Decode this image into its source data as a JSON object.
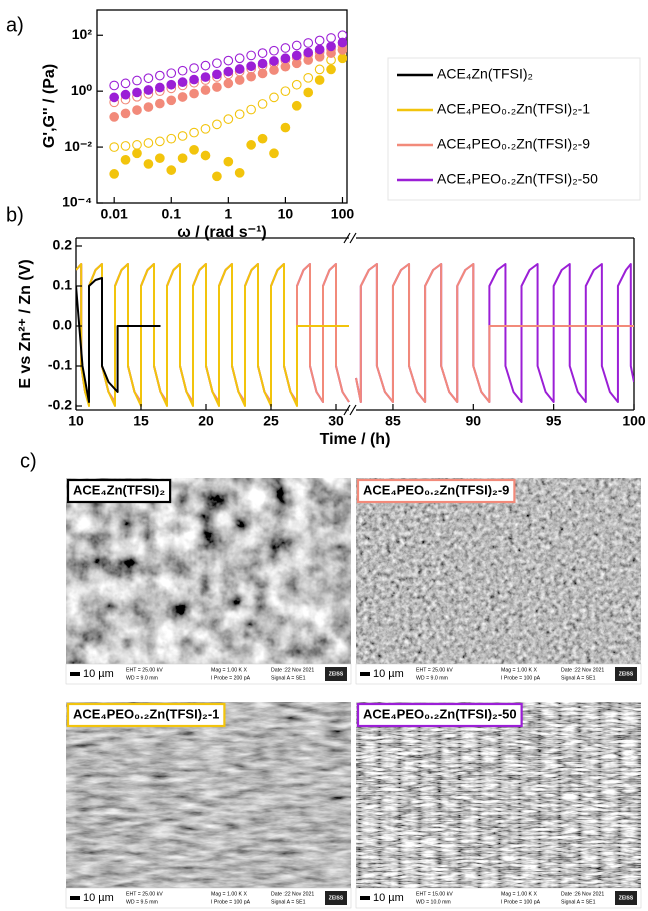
{
  "panel_labels": [
    "a)",
    "b)",
    "c)"
  ],
  "chart_data": [
    {
      "type": "scatter",
      "xlabel": "ω / (rad s⁻¹)",
      "ylabel": "G',G'' / (Pa)",
      "log_x": true,
      "log_y": true,
      "xlim": [
        0.005,
        120
      ],
      "ylim": [
        0.0001,
        800
      ],
      "xticks": [
        0.01,
        0.1,
        1,
        10,
        100
      ],
      "yticks": [
        {
          "value": 100,
          "label": "10²"
        },
        {
          "value": 1,
          "label": "10⁰"
        },
        {
          "value": 0.01,
          "label": "10⁻²"
        },
        {
          "value": 0.0001,
          "label": "10⁻⁴"
        }
      ],
      "x": [
        0.01,
        0.0158,
        0.0251,
        0.0398,
        0.0631,
        0.1,
        0.158,
        0.251,
        0.398,
        0.631,
        1,
        1.58,
        2.51,
        3.98,
        6.31,
        10,
        15.8,
        25.1,
        39.8,
        63.1,
        100
      ],
      "series": [
        {
          "color": "#f2c40c",
          "marker": "filled",
          "values": [
            0.0011,
            0.0035,
            0.006,
            0.0025,
            0.004,
            0.0015,
            0.004,
            0.008,
            0.005,
            0.0009,
            0.003,
            0.0012,
            0.012,
            0.02,
            0.006,
            0.05,
            0.3,
            0.9,
            2.5,
            6,
            15
          ]
        },
        {
          "color": "#f2c40c",
          "marker": "open",
          "values": [
            0.01,
            0.011,
            0.012,
            0.014,
            0.016,
            0.02,
            0.025,
            0.033,
            0.045,
            0.065,
            0.1,
            0.15,
            0.22,
            0.35,
            0.6,
            1,
            1.7,
            3,
            6,
            13,
            30
          ]
        },
        {
          "color": "#f28a7a",
          "marker": "filled",
          "values": [
            0.12,
            0.16,
            0.21,
            0.27,
            0.36,
            0.47,
            0.62,
            0.82,
            1.1,
            1.4,
            1.9,
            2.5,
            3.3,
            4.3,
            5.7,
            7.5,
            9.9,
            13,
            17,
            23,
            30
          ]
        },
        {
          "color": "#f28a7a",
          "marker": "open",
          "values": [
            0.4,
            0.5,
            0.63,
            0.8,
            1,
            1.26,
            1.6,
            2,
            2.5,
            3.2,
            4,
            5,
            6.3,
            8,
            10,
            12.6,
            16,
            20,
            25,
            32,
            40
          ]
        },
        {
          "color": "#9b1fd6",
          "marker": "filled",
          "values": [
            0.6,
            0.75,
            0.9,
            1.1,
            1.35,
            1.7,
            2.1,
            2.6,
            3.2,
            4,
            5,
            6.2,
            7.8,
            9.7,
            12,
            15,
            19,
            24,
            31,
            40,
            55
          ]
        },
        {
          "color": "#9b1fd6",
          "marker": "open",
          "values": [
            1.6,
            1.9,
            2.4,
            2.9,
            3.6,
            4.4,
            5.4,
            6.7,
            8.2,
            10,
            12.4,
            15,
            19,
            23,
            28,
            35,
            43,
            53,
            65,
            80,
            100
          ]
        }
      ]
    },
    {
      "type": "line",
      "xlabel": "Time / (h)",
      "ylabel": "E vs Zn²⁺ / Zn (V)",
      "legend": true,
      "xlim": [
        10,
        100
      ],
      "xbreak": [
        31,
        82.7
      ],
      "ylim": [
        -0.21,
        0.22
      ],
      "xticks": [
        10,
        15,
        20,
        25,
        30,
        85,
        90,
        95,
        100
      ],
      "yticks": [
        0.2,
        0.1,
        {
          "value": 0,
          "label": "0.0"
        },
        -0.1,
        -0.2
      ],
      "series": [
        {
          "name": "ACE₄Zn(TFSI)₂",
          "color": "#000000",
          "x": [
            10,
            10.5,
            11,
            11,
            11.5,
            12,
            12,
            12.5,
            13.2,
            13.2,
            16.5
          ],
          "values": [
            0.1,
            -0.1,
            -0.19,
            0.1,
            0.115,
            0.12,
            -0.1,
            -0.14,
            -0.165,
            0,
            0
          ]
        },
        {
          "name": "ACE₄PEO₀.₂Zn(TFSI)₂-1",
          "color": "#f2c40c",
          "x": [
            10,
            10.4,
            10.4,
            10.7,
            11,
            11,
            11.5,
            12,
            12,
            12.5,
            13,
            13,
            13.5,
            14,
            14,
            14.5,
            15,
            15,
            15.5,
            16,
            16,
            16.5,
            17,
            17,
            17.5,
            18,
            18,
            18.5,
            19,
            19,
            19.5,
            20,
            20,
            20.5,
            21,
            21,
            21.5,
            22,
            22,
            22.5,
            23,
            23,
            23.5,
            24,
            24,
            24.5,
            25,
            25,
            25.5,
            26,
            26,
            26.5,
            27,
            27,
            31
          ],
          "values": [
            0.14,
            0.155,
            -0.1,
            -0.165,
            -0.2,
            0.1,
            0.14,
            0.155,
            -0.1,
            -0.165,
            -0.2,
            0.1,
            0.14,
            0.155,
            -0.1,
            -0.165,
            -0.2,
            0.1,
            0.14,
            0.155,
            -0.1,
            -0.165,
            -0.2,
            0.1,
            0.14,
            0.155,
            -0.1,
            -0.165,
            -0.2,
            0.1,
            0.14,
            0.155,
            -0.1,
            -0.165,
            -0.2,
            0.1,
            0.14,
            0.155,
            -0.1,
            -0.165,
            -0.2,
            0.1,
            0.14,
            0.155,
            -0.1,
            -0.165,
            -0.2,
            0.1,
            0.14,
            0.155,
            -0.1,
            -0.165,
            -0.2,
            0,
            0
          ]
        },
        {
          "name": "ACE₄PEO₀.₂Zn(TFSI)₂-9",
          "color": "#f28a7a",
          "x": [
            10,
            10.4,
            10.4,
            10.7,
            11,
            11,
            11.5,
            12,
            12,
            12.5,
            13,
            13,
            13.5,
            14,
            14,
            14.5,
            15,
            15,
            15.5,
            16,
            16,
            16.5,
            17,
            17,
            17.5,
            18,
            18,
            18.5,
            19,
            19,
            19.5,
            20,
            20,
            20.5,
            21,
            21,
            21.5,
            22,
            22,
            22.5,
            23,
            23,
            23.5,
            24,
            24,
            24.5,
            25,
            25,
            25.5,
            26,
            26,
            26.5,
            27,
            27,
            27.5,
            28,
            28,
            28.5,
            29,
            29,
            29.5,
            30,
            30,
            30.5,
            31,
            null,
            82.7,
            83,
            83,
            83.5,
            84,
            84,
            84.5,
            85,
            85,
            85.5,
            86,
            86,
            86.5,
            87,
            87,
            87.5,
            88,
            88,
            88.5,
            89,
            89,
            89.5,
            90,
            90,
            90.5,
            91,
            91,
            100
          ],
          "values": [
            0.14,
            0.155,
            -0.1,
            -0.165,
            -0.19,
            0.1,
            0.14,
            0.155,
            -0.1,
            -0.165,
            -0.19,
            0.1,
            0.14,
            0.155,
            -0.1,
            -0.165,
            -0.19,
            0.1,
            0.14,
            0.155,
            -0.1,
            -0.165,
            -0.19,
            0.1,
            0.14,
            0.155,
            -0.1,
            -0.165,
            -0.19,
            0.1,
            0.14,
            0.155,
            -0.1,
            -0.165,
            -0.19,
            0.1,
            0.14,
            0.155,
            -0.1,
            -0.165,
            -0.19,
            0.1,
            0.14,
            0.155,
            -0.1,
            -0.165,
            -0.19,
            0.1,
            0.14,
            0.155,
            -0.1,
            -0.165,
            -0.19,
            0.1,
            0.14,
            0.155,
            -0.1,
            -0.165,
            -0.19,
            0.1,
            0.14,
            0.155,
            -0.1,
            -0.165,
            -0.19,
            null,
            -0.13,
            -0.19,
            0.1,
            0.14,
            0.155,
            -0.1,
            -0.165,
            -0.19,
            0.1,
            0.14,
            0.155,
            -0.1,
            -0.165,
            -0.19,
            0.1,
            0.14,
            0.155,
            -0.1,
            -0.165,
            -0.19,
            0.1,
            0.14,
            0.155,
            -0.1,
            -0.165,
            -0.19,
            0,
            0
          ]
        },
        {
          "name": "ACE₄PEO₀.₂Zn(TFSI)₂-50",
          "color": "#9b1fd6",
          "x": [
            10,
            10.4,
            10.4,
            10.7,
            11,
            11,
            11.5,
            12,
            12,
            12.5,
            13,
            13,
            13.5,
            14,
            14,
            14.5,
            15,
            15,
            15.5,
            16,
            16,
            16.5,
            17,
            17,
            17.5,
            18,
            18,
            18.5,
            19,
            19,
            19.5,
            20,
            20,
            20.5,
            21,
            21,
            21.5,
            22,
            22,
            22.5,
            23,
            23,
            23.5,
            24,
            24,
            24.5,
            25,
            25,
            25.5,
            26,
            26,
            26.5,
            27,
            27,
            27.5,
            28,
            28,
            28.5,
            29,
            29,
            29.5,
            30,
            30,
            30.5,
            31,
            null,
            82.7,
            83,
            83,
            83.5,
            84,
            84,
            84.5,
            85,
            85,
            85.5,
            86,
            86,
            86.5,
            87,
            87,
            87.5,
            88,
            88,
            88.5,
            89,
            89,
            89.5,
            90,
            90,
            90.5,
            91,
            91,
            91.5,
            92,
            92,
            92.5,
            93,
            93,
            93.5,
            94,
            94,
            94.5,
            95,
            95,
            95.5,
            96,
            96,
            96.5,
            97,
            97,
            97.5,
            98,
            98,
            98.5,
            99,
            99,
            99.5,
            99.8,
            99.8,
            100
          ],
          "values": [
            0.14,
            0.155,
            -0.1,
            -0.165,
            -0.19,
            0.1,
            0.14,
            0.155,
            -0.1,
            -0.165,
            -0.19,
            0.1,
            0.14,
            0.155,
            -0.1,
            -0.165,
            -0.19,
            0.1,
            0.14,
            0.155,
            -0.1,
            -0.165,
            -0.19,
            0.1,
            0.14,
            0.155,
            -0.1,
            -0.165,
            -0.19,
            0.1,
            0.14,
            0.155,
            -0.1,
            -0.165,
            -0.19,
            0.1,
            0.14,
            0.155,
            -0.1,
            -0.165,
            -0.19,
            0.1,
            0.14,
            0.155,
            -0.1,
            -0.165,
            -0.19,
            0.1,
            0.14,
            0.155,
            -0.1,
            -0.165,
            -0.19,
            0.1,
            0.14,
            0.155,
            -0.1,
            -0.165,
            -0.19,
            0.1,
            0.14,
            0.155,
            -0.1,
            -0.165,
            -0.19,
            null,
            -0.13,
            -0.19,
            0.1,
            0.14,
            0.155,
            -0.1,
            -0.165,
            -0.19,
            0.1,
            0.14,
            0.155,
            -0.1,
            -0.165,
            -0.19,
            0.1,
            0.14,
            0.155,
            -0.1,
            -0.165,
            -0.19,
            0.1,
            0.14,
            0.155,
            -0.1,
            -0.165,
            -0.19,
            0.1,
            0.14,
            0.155,
            -0.1,
            -0.165,
            -0.19,
            0.1,
            0.14,
            0.155,
            -0.1,
            -0.165,
            -0.19,
            0.1,
            0.14,
            0.155,
            -0.1,
            -0.165,
            -0.19,
            0.1,
            0.14,
            0.155,
            -0.1,
            -0.165,
            -0.19,
            0.1,
            0.14,
            0.155,
            -0.1,
            -0.14
          ]
        }
      ]
    }
  ],
  "panel_c": {
    "images": [
      {
        "title": "ACE₄Zn(TFSI)₂",
        "border_color": "#000000",
        "scale_bar": "10 µm",
        "logo": "ZEISS",
        "info": [
          "EHT = 25.00 kV",
          "WD = 9.0 mm",
          "Mag = 1.00 K X",
          "I Probe = 200 pA",
          "Date :22 Nov 2021",
          "Signal A = SE1"
        ]
      },
      {
        "title": "ACE₄PEO₀.₂Zn(TFSI)₂-9",
        "border_color": "#f28a7a",
        "scale_bar": "10 µm",
        "logo": "ZEISS",
        "info": [
          "EHT = 25.00 kV",
          "WD = 9.0 mm",
          "Mag = 1.00 K X",
          "I Probe = 100 pA",
          "Date :22 Nov 2021",
          "Signal A = SE1"
        ]
      },
      {
        "title": "ACE₄PEO₀.₂Zn(TFSI)₂-1",
        "border_color": "#f2c40c",
        "scale_bar": "10 µm",
        "logo": "ZEISS",
        "info": [
          "EHT = 25.00 kV",
          "WD = 9.5 mm",
          "Mag = 1.00 K X",
          "I Probe = 100 pA",
          "Date :22 Nov 2021",
          "Signal A = SE1"
        ]
      },
      {
        "title": "ACE₄PEO₀.₂Zn(TFSI)₂-50",
        "border_color": "#9b1fd6",
        "scale_bar": "10 µm",
        "logo": "ZEISS",
        "info": [
          "EHT = 15.00 kV",
          "WD = 10.0 mm",
          "Mag = 1.00 K X",
          "I Probe = 100 pA",
          "Date :26 Nov 2021",
          "Signal A = SE1"
        ]
      }
    ]
  }
}
